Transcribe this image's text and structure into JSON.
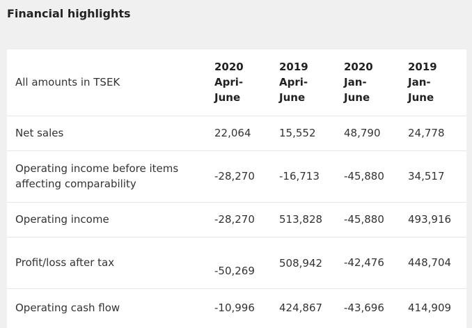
{
  "title": "Financial highlights",
  "table": {
    "unit_label": "All amounts in TSEK",
    "columns": [
      "2020\nApri-\nJune",
      "2019\nApri-\nJune",
      "2020\nJan-\nJune",
      "2019\nJan-\nJune"
    ],
    "rows": [
      {
        "label": "Net sales",
        "values": [
          "22,064",
          "15,552",
          "48,790",
          "24,778"
        ]
      },
      {
        "label": "Operating income before items affecting comparability",
        "values": [
          "-28,270",
          "-16,713",
          "-45,880",
          "34,517"
        ]
      },
      {
        "label": "Operating income",
        "values": [
          "-28,270",
          "513,828",
          "-45,880",
          "493,916"
        ]
      },
      {
        "label": "Profit/loss after tax",
        "values": [
          "-50,269",
          "508,942",
          "-42,476",
          "448,704"
        ]
      },
      {
        "label": "Operating cash flow",
        "values": [
          "-10,996",
          "424,867",
          "-43,696",
          "414,909"
        ]
      }
    ]
  }
}
